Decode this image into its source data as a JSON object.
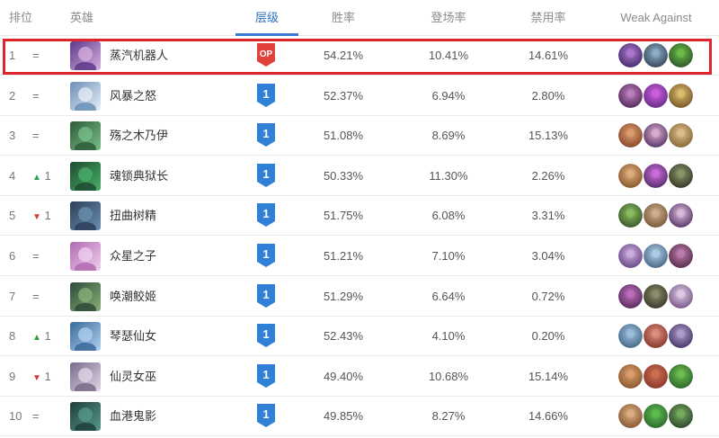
{
  "headers": {
    "rank": "排位",
    "champion": "英雄",
    "tier": "层级",
    "win_rate": "胜率",
    "pick_rate": "登场率",
    "ban_rate": "禁用率",
    "weak_against": "Weak Against"
  },
  "colors": {
    "accent": "#3b7ad1",
    "highlight_border": "#e0242c",
    "op_badge": "#e0413a",
    "tier_badge": "#2f80d6",
    "trend_up": "#2e9e4a",
    "trend_down": "#d03a3a"
  },
  "rows": [
    {
      "rank": "1",
      "trend": "=",
      "trend_dir": "same",
      "trend_value": "",
      "name": "蒸汽机器人",
      "tier": "OP",
      "win": "54.21%",
      "pick": "10.41%",
      "ban": "14.61%",
      "portrait": [
        "#5b3a8a",
        "#d8b0e0"
      ],
      "weak": [
        [
          "#4a2e6e",
          "#b07ad0"
        ],
        [
          "#3b4a5e",
          "#8fb0c8"
        ],
        [
          "#2e5a2a",
          "#6fbf4a"
        ]
      ]
    },
    {
      "rank": "2",
      "trend": "=",
      "trend_dir": "same",
      "trend_value": "",
      "name": "风暴之怒",
      "tier": "1",
      "win": "52.37%",
      "pick": "6.94%",
      "ban": "2.80%",
      "portrait": [
        "#6a8fb8",
        "#e8eef6"
      ],
      "weak": [
        [
          "#5a2e5e",
          "#c080c0"
        ],
        [
          "#6a2e8a",
          "#d060e0"
        ],
        [
          "#7a5a2a",
          "#e0c070"
        ]
      ]
    },
    {
      "rank": "3",
      "trend": "=",
      "trend_dir": "same",
      "trend_value": "",
      "name": "殇之木乃伊",
      "tier": "1",
      "win": "51.08%",
      "pick": "8.69%",
      "ban": "15.13%",
      "portrait": [
        "#2e5a3a",
        "#7ac08a"
      ],
      "weak": [
        [
          "#8a4a2e",
          "#e0a070"
        ],
        [
          "#5a3a6a",
          "#e0b0d0"
        ],
        [
          "#8a6a3a",
          "#e0c090"
        ]
      ]
    },
    {
      "rank": "4",
      "trend": "▲ 1",
      "trend_dir": "up",
      "trend_value": "1",
      "name": "魂锁典狱长",
      "tier": "1",
      "win": "50.33%",
      "pick": "11.30%",
      "ban": "2.26%",
      "portrait": [
        "#1e4a2e",
        "#4ab06a"
      ],
      "weak": [
        [
          "#8a5a2e",
          "#e0b080"
        ],
        [
          "#5a2e6e",
          "#d070e0"
        ],
        [
          "#3a3a2a",
          "#8a9a6a"
        ]
      ]
    },
    {
      "rank": "5",
      "trend": "▼ 1",
      "trend_dir": "down",
      "trend_value": "1",
      "name": "扭曲树精",
      "tier": "1",
      "win": "51.75%",
      "pick": "6.08%",
      "ban": "3.31%",
      "portrait": [
        "#2e3e5a",
        "#6a90b0"
      ],
      "weak": [
        [
          "#3a5a2e",
          "#90c060"
        ],
        [
          "#7a5a3a",
          "#d0b090"
        ],
        [
          "#5a3a6a",
          "#e0c0e0"
        ]
      ]
    },
    {
      "rank": "6",
      "trend": "=",
      "trend_dir": "same",
      "trend_value": "",
      "name": "众星之子",
      "tier": "1",
      "win": "51.21%",
      "pick": "7.10%",
      "ban": "3.04%",
      "portrait": [
        "#b06ab0",
        "#f0d0f0"
      ],
      "weak": [
        [
          "#6a4a8a",
          "#d0b0e0"
        ],
        [
          "#4a6a8a",
          "#b0d0e8"
        ],
        [
          "#5a2e4e",
          "#c080b0"
        ]
      ]
    },
    {
      "rank": "7",
      "trend": "=",
      "trend_dir": "same",
      "trend_value": "",
      "name": "唤潮鲛姬",
      "tier": "1",
      "win": "51.29%",
      "pick": "6.64%",
      "ban": "0.72%",
      "portrait": [
        "#2e4a3a",
        "#8ab07a"
      ],
      "weak": [
        [
          "#5a2e5e",
          "#c070c0"
        ],
        [
          "#3a3a2a",
          "#909070"
        ],
        [
          "#7a5a8a",
          "#e0d0e8"
        ]
      ]
    },
    {
      "rank": "8",
      "trend": "▲ 1",
      "trend_dir": "up",
      "trend_value": "1",
      "name": "琴瑟仙女",
      "tier": "1",
      "win": "52.43%",
      "pick": "4.10%",
      "ban": "0.20%",
      "portrait": [
        "#3a6a9a",
        "#b0d0f0"
      ],
      "weak": [
        [
          "#4a6a8a",
          "#a0c0e0"
        ],
        [
          "#8a3a2e",
          "#e09080"
        ],
        [
          "#4a3a6a",
          "#b0a0d0"
        ]
      ]
    },
    {
      "rank": "9",
      "trend": "▼ 1",
      "trend_dir": "down",
      "trend_value": "1",
      "name": "仙灵女巫",
      "tier": "1",
      "win": "49.40%",
      "pick": "10.68%",
      "ban": "15.14%",
      "portrait": [
        "#7a6a8a",
        "#e0d8e8"
      ],
      "weak": [
        [
          "#8a5a2e",
          "#e0a070"
        ],
        [
          "#8a3a2e",
          "#d07050"
        ],
        [
          "#2e6a2e",
          "#70c050"
        ]
      ]
    },
    {
      "rank": "10",
      "trend": "=",
      "trend_dir": "same",
      "trend_value": "",
      "name": "血港鬼影",
      "tier": "1",
      "win": "49.85%",
      "pick": "8.27%",
      "ban": "14.66%",
      "portrait": [
        "#1e3e3e",
        "#5a9a8a"
      ],
      "weak": [
        [
          "#8a5a3a",
          "#e0b080"
        ],
        [
          "#2e6a2e",
          "#60c050"
        ],
        [
          "#2e4a2e",
          "#7ab060"
        ]
      ]
    }
  ]
}
